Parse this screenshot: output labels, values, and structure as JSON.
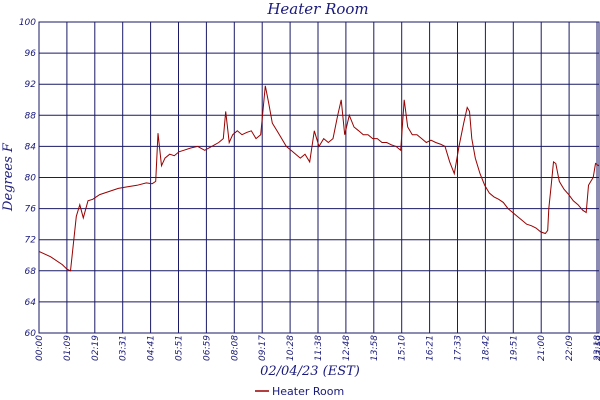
{
  "chart_data": {
    "type": "line",
    "title": "Heater Room",
    "xlabel": "02/04/23 (EST)",
    "ylabel": "Degrees F",
    "ylim": [
      60,
      100
    ],
    "y_ticks": [
      60,
      64,
      68,
      72,
      76,
      80,
      84,
      88,
      92,
      96,
      100
    ],
    "x_ticks": [
      "00:00",
      "01:09",
      "02:19",
      "03:31",
      "04:41",
      "05:51",
      "06:59",
      "08:08",
      "09:17",
      "10:28",
      "11:38",
      "12:48",
      "13:58",
      "15:10",
      "16:21",
      "17:33",
      "18:42",
      "19:51",
      "21:00",
      "22:09",
      "23:18",
      "23:59"
    ],
    "grid": true,
    "legend_position": "bottom-center",
    "colors": {
      "series": "#990000",
      "grid": "#1a1a66",
      "text": "#1a1a7a"
    },
    "series": [
      {
        "name": "Heater Room",
        "x_hours": [
          0.0,
          0.5,
          1.0,
          1.2,
          1.35,
          1.6,
          1.75,
          1.9,
          2.1,
          2.3,
          2.6,
          3.0,
          3.4,
          3.8,
          4.2,
          4.6,
          4.85,
          5.0,
          5.1,
          5.25,
          5.4,
          5.6,
          5.8,
          6.0,
          6.2,
          6.5,
          6.8,
          7.1,
          7.4,
          7.7,
          7.9,
          8.0,
          8.15,
          8.3,
          8.5,
          8.7,
          8.9,
          9.1,
          9.3,
          9.5,
          9.7,
          9.85,
          10.0,
          10.2,
          10.4,
          10.6,
          10.8,
          11.0,
          11.2,
          11.4,
          11.6,
          11.8,
          12.0,
          12.2,
          12.4,
          12.6,
          12.8,
          12.95,
          13.1,
          13.3,
          13.5,
          13.7,
          13.9,
          14.1,
          14.3,
          14.5,
          14.7,
          14.9,
          15.1,
          15.3,
          15.5,
          15.65,
          15.8,
          16.0,
          16.2,
          16.4,
          16.6,
          16.8,
          17.0,
          17.2,
          17.4,
          17.6,
          17.8,
          18.0,
          18.2,
          18.35,
          18.45,
          18.55,
          18.7,
          18.9,
          19.1,
          19.3,
          19.5,
          19.7,
          19.9,
          20.1,
          20.3,
          20.5,
          20.7,
          20.9,
          21.1,
          21.3,
          21.5,
          21.7,
          21.8,
          21.85,
          21.95,
          22.05,
          22.15,
          22.3,
          22.5,
          22.7,
          22.9,
          23.1,
          23.3,
          23.45,
          23.55,
          23.65,
          23.75,
          23.85,
          23.99
        ],
        "values": [
          70.5,
          69.8,
          68.8,
          68.2,
          68.0,
          75.0,
          76.5,
          74.8,
          77.0,
          77.2,
          77.8,
          78.2,
          78.6,
          78.8,
          79.0,
          79.3,
          79.2,
          79.5,
          85.7,
          81.5,
          82.5,
          83.0,
          82.8,
          83.3,
          83.5,
          83.8,
          84.0,
          83.5,
          84.0,
          84.5,
          85.0,
          88.5,
          84.5,
          85.5,
          86.0,
          85.5,
          85.8,
          86.0,
          85.0,
          85.5,
          91.8,
          89.5,
          87.0,
          86.0,
          85.0,
          84.0,
          83.5,
          83.0,
          82.5,
          83.0,
          82.0,
          86.0,
          84.0,
          85.0,
          84.5,
          85.0,
          88.0,
          90.0,
          85.5,
          88.0,
          86.5,
          86.0,
          85.5,
          85.5,
          85.0,
          85.0,
          84.5,
          84.5,
          84.2,
          84.0,
          83.5,
          90.0,
          86.5,
          85.5,
          85.5,
          85.0,
          84.5,
          84.8,
          84.5,
          84.3,
          84.0,
          82.0,
          80.5,
          84.0,
          87.0,
          89.0,
          88.5,
          85.0,
          82.5,
          80.5,
          79.0,
          78.0,
          77.5,
          77.2,
          76.8,
          76.0,
          75.5,
          75.0,
          74.5,
          74.0,
          73.8,
          73.5,
          73.0,
          72.8,
          73.2,
          76.0,
          79.0,
          82.0,
          81.8,
          79.5,
          78.5,
          77.8,
          77.0,
          76.5,
          75.8,
          75.5,
          79.0,
          79.5,
          80.0,
          81.8,
          81.5
        ]
      }
    ]
  }
}
